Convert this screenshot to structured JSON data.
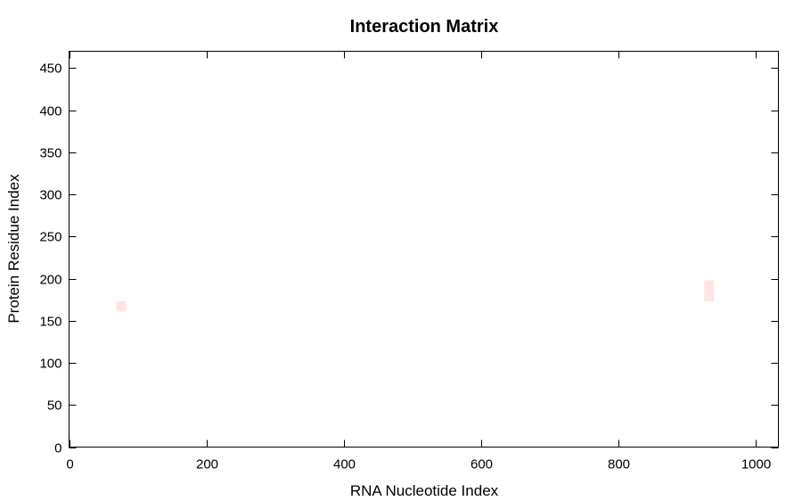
{
  "chart_data": {
    "type": "heatmap",
    "title": "Interaction Matrix",
    "xlabel": "RNA Nucleotide Index",
    "ylabel": "Protein Residue Index",
    "xlim": [
      0,
      1033
    ],
    "ylim": [
      0,
      470
    ],
    "xticks": [
      0,
      200,
      400,
      600,
      800,
      1000
    ],
    "yticks": [
      0,
      50,
      100,
      150,
      200,
      250,
      300,
      350,
      400,
      450
    ],
    "grid": false,
    "legend": "none",
    "color": "#ffe4e4",
    "cells": [
      {
        "x0": 69,
        "x1": 83,
        "y0": 161,
        "y1": 173
      },
      {
        "x0": 925,
        "x1": 939,
        "y0": 173,
        "y1": 198
      }
    ]
  }
}
